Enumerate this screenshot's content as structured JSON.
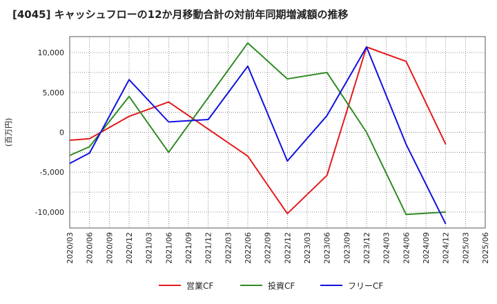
{
  "chart_data": {
    "type": "line",
    "title": "[4045]  キャッシュフローの12か月移動合計の対前年同期増減額の推移",
    "ylabel": "(百万円)",
    "xlabel": "",
    "ylim": [
      -12000,
      12000
    ],
    "yticks": [
      10000,
      5000,
      0,
      -5000,
      -10000
    ],
    "ytick_labels": [
      "10,000",
      "5,000",
      "0",
      "-5,000",
      "-10,000"
    ],
    "categories": [
      "2020/03",
      "2020/06",
      "2020/09",
      "2020/12",
      "2021/03",
      "2021/06",
      "2021/09",
      "2021/12",
      "2022/03",
      "2022/06",
      "2022/09",
      "2022/12",
      "2023/03",
      "2023/06",
      "2023/09",
      "2023/12",
      "2024/03",
      "2024/06",
      "2024/09",
      "2024/12",
      "2025/03",
      "2025/06"
    ],
    "grid": true,
    "legend_position": "bottom",
    "series": [
      {
        "name": "営業CF",
        "color": "#e41a1c",
        "values": [
          -1000,
          -800,
          null,
          2000,
          null,
          3800,
          null,
          null,
          null,
          -3000,
          null,
          -10200,
          null,
          -5400,
          null,
          10700,
          null,
          8900,
          null,
          -1500,
          null,
          null
        ]
      },
      {
        "name": "投資CF",
        "color": "#2e8b22",
        "values": [
          -2900,
          -1800,
          null,
          4500,
          null,
          -2500,
          null,
          null,
          null,
          11200,
          null,
          6700,
          null,
          7500,
          null,
          0,
          null,
          -10300,
          null,
          -10000,
          null,
          null
        ]
      },
      {
        "name": "フリーCF",
        "color": "#1010e0",
        "values": [
          -3900,
          -2600,
          null,
          6600,
          null,
          1300,
          null,
          1600,
          null,
          8300,
          null,
          -3600,
          null,
          2100,
          null,
          10700,
          null,
          -1500,
          null,
          -11500,
          null,
          null
        ]
      }
    ]
  }
}
